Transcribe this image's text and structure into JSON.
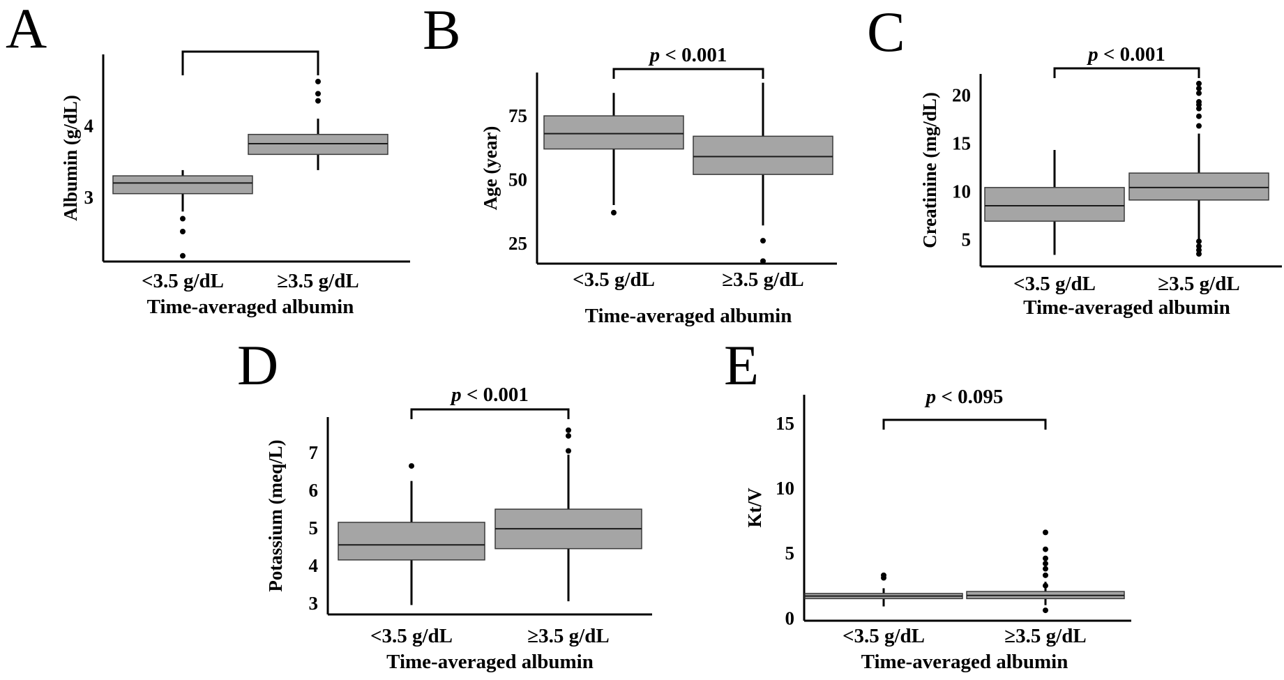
{
  "figure": {
    "categories": [
      "<3.5 g/dL",
      "≥3.5 g/dL"
    ],
    "xlabel": "Time-averaged albumin",
    "colors": {
      "box_fill": "#a5a5a5",
      "line": "#000000"
    }
  },
  "chart_data": [
    {
      "type": "box",
      "panel": "A",
      "title": "",
      "ylabel": "Albumin (g/dL)",
      "xlabel": "Time-averaged albumin",
      "categories": [
        "<3.5 g/dL",
        "≥3.5 g/dL"
      ],
      "ylim": [
        2.1,
        5.0
      ],
      "yticks": [
        3,
        4
      ],
      "p_value_prefix": "",
      "p_value_text": "",
      "boxes": [
        {
          "category": "<3.5 g/dL",
          "whisker_low": 2.8,
          "q1": 3.05,
          "median": 3.2,
          "q3": 3.3,
          "whisker_high": 3.38,
          "outliers": [
            2.7,
            2.52,
            2.18
          ]
        },
        {
          "category": "≥3.5 g/dL",
          "whisker_low": 3.38,
          "q1": 3.6,
          "median": 3.75,
          "q3": 3.88,
          "whisker_high": 4.1,
          "outliers": [
            4.35,
            4.45,
            4.62
          ]
        }
      ]
    },
    {
      "type": "box",
      "panel": "B",
      "title": "",
      "ylabel": "Age (year)",
      "xlabel": "Time-averaged albumin",
      "categories": [
        "<3.5 g/dL",
        "≥3.5 g/dL"
      ],
      "ylim": [
        17,
        92
      ],
      "yticks": [
        25,
        50,
        75
      ],
      "p_value_prefix": "p",
      "p_value_text": " < 0.001",
      "boxes": [
        {
          "category": "<3.5 g/dL",
          "whisker_low": 40,
          "q1": 62,
          "median": 68,
          "q3": 75,
          "whisker_high": 84,
          "outliers": [
            37
          ]
        },
        {
          "category": "≥3.5 g/dL",
          "whisker_low": 32,
          "q1": 52,
          "median": 59,
          "q3": 67,
          "whisker_high": 88,
          "outliers": [
            26,
            18
          ]
        }
      ]
    },
    {
      "type": "box",
      "panel": "C",
      "title": "",
      "ylabel": "Creatinine (mg/dL)",
      "xlabel": "Time-averaged albumin",
      "categories": [
        "<3.5 g/dL",
        "≥3.5 g/dL"
      ],
      "ylim": [
        2.2,
        22.2
      ],
      "yticks": [
        5,
        10,
        15,
        20
      ],
      "p_value_prefix": "p",
      "p_value_text": " < 0.001",
      "boxes": [
        {
          "category": "<3.5 g/dL",
          "whisker_low": 3.4,
          "q1": 6.9,
          "median": 8.5,
          "q3": 10.4,
          "whisker_high": 14.3,
          "outliers": []
        },
        {
          "category": "≥3.5 g/dL",
          "whisker_low": 5.0,
          "q1": 9.1,
          "median": 10.4,
          "q3": 11.9,
          "whisker_high": 16.0,
          "outliers": [
            4.8,
            4.3,
            3.9,
            3.5,
            16.8,
            17.8,
            18.6,
            19.0,
            19.3,
            20.2,
            20.7,
            21.2
          ]
        }
      ]
    },
    {
      "type": "box",
      "panel": "D",
      "title": "",
      "ylabel": "Potassium (meq/L)",
      "xlabel": "Time-averaged albumin",
      "categories": [
        "<3.5 g/dL",
        "≥3.5 g/dL"
      ],
      "ylim": [
        2.7,
        7.95
      ],
      "yticks": [
        3,
        4,
        5,
        6,
        7
      ],
      "p_value_prefix": "p",
      "p_value_text": " < 0.001",
      "boxes": [
        {
          "category": "<3.5 g/dL",
          "whisker_low": 2.95,
          "q1": 4.15,
          "median": 4.55,
          "q3": 5.15,
          "whisker_high": 6.25,
          "outliers": [
            6.65
          ]
        },
        {
          "category": "≥3.5 g/dL",
          "whisker_low": 3.05,
          "q1": 4.45,
          "median": 4.98,
          "q3": 5.5,
          "whisker_high": 6.95,
          "outliers": [
            7.05,
            7.45,
            7.6
          ]
        }
      ]
    },
    {
      "type": "box",
      "panel": "E",
      "title": "",
      "ylabel": "Kt/V",
      "xlabel": "Time-averaged albumin",
      "categories": [
        "<3.5 g/dL",
        "≥3.5 g/dL"
      ],
      "ylim": [
        -0.2,
        17.2
      ],
      "yticks": [
        0,
        5,
        10,
        15
      ],
      "p_value_prefix": "p",
      "p_value_text": " < 0.095",
      "boxes": [
        {
          "category": "<3.5 g/dL",
          "whisker_low": 0.9,
          "q1": 1.5,
          "median": 1.7,
          "q3": 1.9,
          "whisker_high": 2.3,
          "outliers": [
            3.1,
            3.3
          ]
        },
        {
          "category": "≥3.5 g/dL",
          "whisker_low": 1.0,
          "q1": 1.5,
          "median": 1.75,
          "q3": 2.05,
          "whisker_high": 2.8,
          "outliers": [
            0.6,
            2.5,
            3.3,
            3.8,
            4.2,
            4.6,
            5.3,
            6.6
          ]
        }
      ]
    }
  ]
}
